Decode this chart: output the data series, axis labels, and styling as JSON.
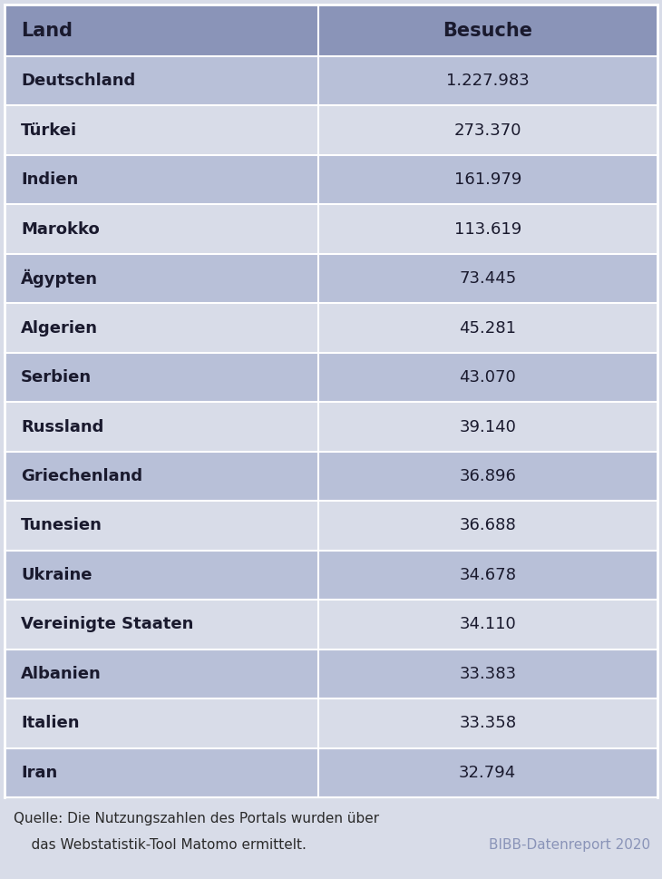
{
  "countries": [
    "Deutschland",
    "Türkei",
    "Indien",
    "Marokko",
    "Ägypten",
    "Algerien",
    "Serbien",
    "Russland",
    "Griechenland",
    "Tunesien",
    "Ukraine",
    "Vereinigte Staaten",
    "Albanien",
    "Italien",
    "Iran"
  ],
  "visits": [
    "1.227.983",
    "273.370",
    "161.979",
    "113.619",
    "73.445",
    "45.281",
    "43.070",
    "39.140",
    "36.896",
    "36.688",
    "34.678",
    "34.110",
    "33.383",
    "33.358",
    "32.794"
  ],
  "header_bg": "#8a94b8",
  "row_color_odd": "#b8c0d8",
  "row_color_even": "#d8dce8",
  "footer_bg": "#d8dce8",
  "header_text_color": "#1a1a2e",
  "row_text_color": "#1a1a2e",
  "divider_color": "#ffffff",
  "col_split": 0.48,
  "header_label_left": "Land",
  "header_label_right": "Besuche",
  "source_line1": "Quelle: Die Nutzungszahlen des Portals wurden über",
  "source_line2": "    das Webstatistik-Tool Matomo ermittelt.",
  "source_right": "BIBB-Datenreport 2020",
  "header_fontsize": 15,
  "row_fontsize": 13,
  "footer_fontsize": 11
}
